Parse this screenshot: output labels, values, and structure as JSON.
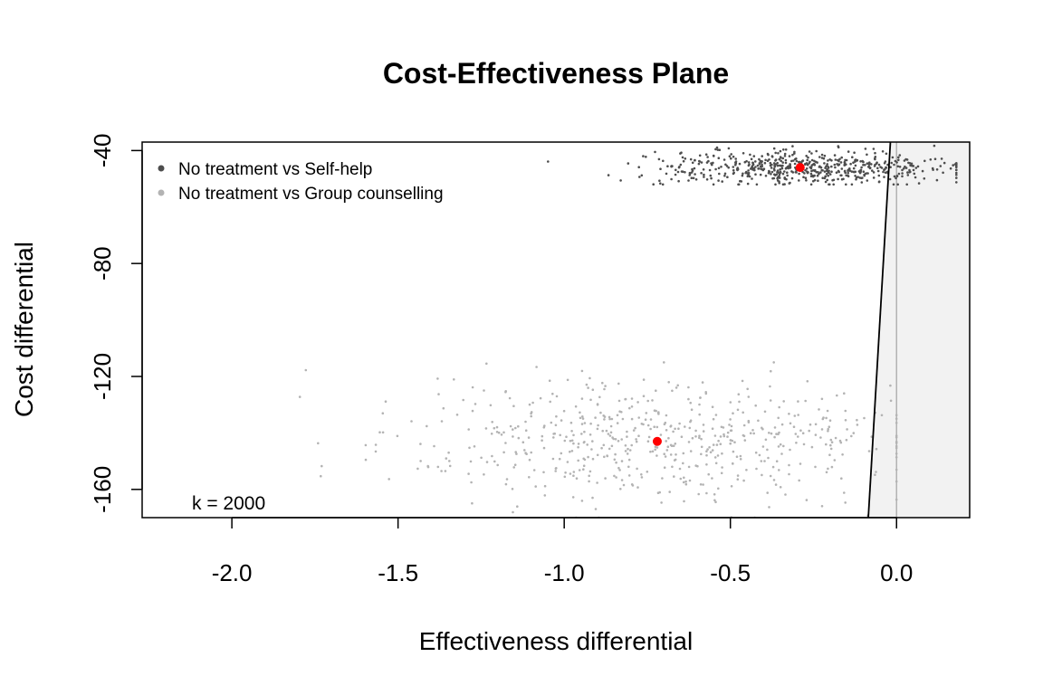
{
  "chart_data": {
    "type": "scatter",
    "title": "Cost-Effectiveness Plane",
    "xlabel": "Effectiveness differential",
    "ylabel": "Cost differential",
    "xlim": [
      -2.27,
      0.22
    ],
    "ylim": [
      -170,
      -37
    ],
    "x_ticks": [
      -2.0,
      -1.5,
      -1.0,
      -0.5,
      0.0
    ],
    "x_tick_labels": [
      "-2.0",
      "-1.5",
      "-1.0",
      "-0.5",
      "0.0"
    ],
    "y_ticks": [
      -40,
      -80,
      -120,
      -160
    ],
    "y_tick_labels": [
      "-40",
      "-80",
      "-120",
      "-160"
    ],
    "legend_position": "top-left",
    "grid": false,
    "annotation": "k = 2000",
    "wtp_threshold": 2000,
    "series": [
      {
        "name": "No treatment vs Self-help",
        "color": "#4d4d4d",
        "mean": {
          "x": -0.29,
          "y": -46
        },
        "spread": {
          "x_min": -1.32,
          "x_max": 0.18,
          "y_min": -52,
          "y_max": -37
        }
      },
      {
        "name": "No treatment vs Group counselling",
        "color": "#b3b3b3",
        "mean": {
          "x": -0.72,
          "y": -143
        },
        "spread": {
          "x_min": -2.08,
          "x_max": 0.0,
          "y_min": -170,
          "y_max": -115
        }
      }
    ],
    "mean_marker_color": "#ff0000",
    "sustainability_region_color": "#f2f2f2"
  }
}
